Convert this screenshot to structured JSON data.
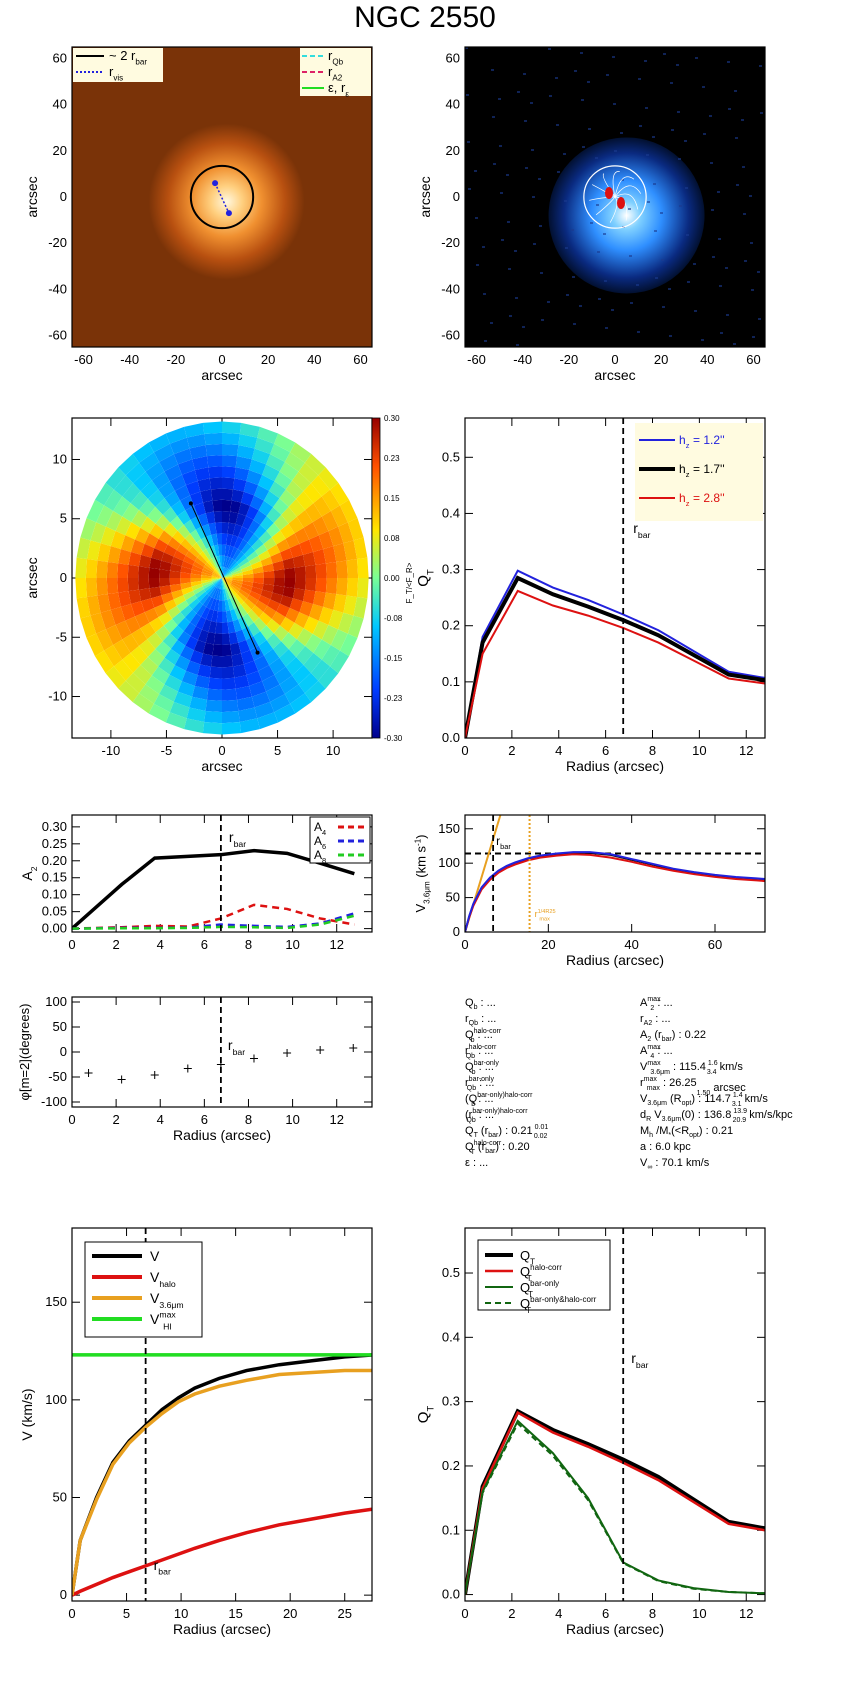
{
  "figure": {
    "title": "NGC 2550",
    "colors": {
      "black": "#000000",
      "blue": "#2222dd",
      "red": "#dd1111",
      "orange": "#e8a020",
      "green": "#22dd22",
      "darkgreen": "#116611",
      "cyan": "#33dddd",
      "magenta": "#dd2266",
      "dashed": "#000000"
    }
  },
  "chart_data": [
    {
      "id": "p1",
      "type": "image",
      "xlabel": "arcsec",
      "ylabel": "arcsec",
      "xlim": [
        -65,
        65
      ],
      "ylim": [
        -65,
        65
      ],
      "xticks": [
        -60,
        -40,
        -20,
        0,
        20,
        40,
        60
      ],
      "yticks": [
        -60,
        -40,
        -20,
        0,
        20,
        40,
        60
      ],
      "colormap": "orange",
      "circle_radius": 13.5,
      "bar_line": [
        [
          -3,
          6
        ],
        [
          3,
          -7
        ]
      ],
      "legend_left": [
        {
          "label": "~ 2 r",
          "sub": "bar",
          "style": "solid",
          "color": "#000000"
        },
        {
          "label": "r",
          "sub": "vis",
          "style": "dotted",
          "color": "#2222dd"
        }
      ],
      "legend_right": [
        {
          "label": "r",
          "sub": "Qb",
          "style": "dashed",
          "color": "#33dddd"
        },
        {
          "label": "r",
          "sub": "A2",
          "style": "dashed",
          "color": "#dd2266"
        },
        {
          "label": "ε, r",
          "sub": "ε",
          "style": "solid",
          "color": "#22dd22"
        }
      ]
    },
    {
      "id": "p2",
      "type": "image",
      "xlabel": "arcsec",
      "ylabel": "arcsec",
      "xlim": [
        -65,
        65
      ],
      "ylim": [
        -65,
        65
      ],
      "xticks": [
        -60,
        -40,
        -20,
        0,
        20,
        40,
        60
      ],
      "yticks": [
        -60,
        -40,
        -20,
        0,
        20,
        40,
        60
      ],
      "colormap": "blue",
      "circle_radius": 13.5
    },
    {
      "id": "p3",
      "type": "heatmap",
      "xlabel": "arcsec",
      "ylabel": "arcsec",
      "xlim": [
        -13.5,
        13.5
      ],
      "ylim": [
        -13.5,
        13.5
      ],
      "xticks": [
        -10,
        -5,
        0,
        5,
        10
      ],
      "yticks": [
        -10,
        -5,
        0,
        5,
        10
      ],
      "disk_radius": 13.2,
      "bar_line": [
        [
          -2.8,
          6.3
        ],
        [
          3.2,
          -6.3
        ]
      ],
      "colorbar": {
        "ticks": [
          "0.30",
          "0.23",
          "0.15",
          "0.08",
          "0.00",
          "-0.08",
          "-0.15",
          "-0.23",
          "-0.30"
        ],
        "label": "F_T/<F_R>"
      }
    },
    {
      "id": "p4",
      "type": "line",
      "xlabel": "Radius (arcsec)",
      "ylabel": "Q",
      "ylabel_sub": "T",
      "xlim": [
        0,
        12.8
      ],
      "ylim": [
        0,
        0.57
      ],
      "xticks": [
        0,
        2,
        4,
        6,
        8,
        10,
        12
      ],
      "yticks": [
        0.0,
        0.1,
        0.2,
        0.3,
        0.4,
        0.5
      ],
      "vline": 6.75,
      "vline_label": "r",
      "vline_label_sub": "bar",
      "x": [
        0,
        0.75,
        2.25,
        3.75,
        5.25,
        6.75,
        8.25,
        9.75,
        11.25,
        12.8
      ],
      "series": [
        {
          "name": "h",
          "name_sub": "z",
          "value": "=  1.2''",
          "color": "#2222dd",
          "width": 2,
          "values": [
            0,
            0.18,
            0.298,
            0.268,
            0.246,
            0.22,
            0.192,
            0.155,
            0.118,
            0.107
          ]
        },
        {
          "name": "h",
          "name_sub": "z",
          "value": "=  1.7''",
          "color": "#000000",
          "width": 4,
          "values": [
            0,
            0.17,
            0.285,
            0.256,
            0.234,
            0.21,
            0.183,
            0.148,
            0.113,
            0.103
          ]
        },
        {
          "name": "h",
          "name_sub": "z",
          "value": "=  2.8''",
          "color": "#dd1111",
          "width": 2,
          "values": [
            0,
            0.15,
            0.262,
            0.236,
            0.218,
            0.196,
            0.17,
            0.138,
            0.106,
            0.097
          ]
        }
      ]
    },
    {
      "id": "p5",
      "type": "line",
      "xlabel": "",
      "ylabel": "A",
      "ylabel_sub": "2",
      "xlim": [
        0,
        13.6
      ],
      "ylim": [
        -0.01,
        0.335
      ],
      "xticks": [
        0,
        2,
        4,
        6,
        8,
        10,
        12
      ],
      "yticks": [
        "0.00",
        "0.05",
        "0.10",
        "0.15",
        "0.20",
        "0.25",
        "0.30"
      ],
      "vline": 6.75,
      "vline_label": "r",
      "vline_label_sub": "bar",
      "x": [
        0,
        2.25,
        3.75,
        5.25,
        6.75,
        8.25,
        9.75,
        11.25,
        12.8
      ],
      "series": [
        {
          "name": "A2",
          "color": "#000000",
          "width": 3.5,
          "dash": "",
          "values": [
            0,
            0.13,
            0.208,
            0.213,
            0.218,
            0.23,
            0.222,
            0.193,
            0.162
          ]
        },
        {
          "name": "A",
          "name_sub": "4",
          "color": "#dd1111",
          "width": 2.5,
          "dash": "7,5",
          "values": [
            0,
            0.004,
            0.008,
            0.006,
            0.03,
            0.07,
            0.058,
            0.03,
            0.012
          ]
        },
        {
          "name": "A",
          "name_sub": "6",
          "color": "#2222dd",
          "width": 2.5,
          "dash": "7,5",
          "values": [
            0,
            0.002,
            0.002,
            0.003,
            0.012,
            0.008,
            0.005,
            0.015,
            0.045
          ]
        },
        {
          "name": "A",
          "name_sub": "8",
          "color": "#22cc22",
          "width": 2.5,
          "dash": "7,5",
          "values": [
            0,
            0.001,
            0.001,
            0.002,
            0.005,
            0.004,
            0.002,
            0.012,
            0.038
          ]
        }
      ]
    },
    {
      "id": "p6",
      "type": "line",
      "xlabel": "Radius (arcsec)",
      "ylabel": "V",
      "ylabel_sub": "3.6μm",
      "ylabel_suffix": " (km s",
      "ylabel_sup": "-1",
      "ylabel_end": ")",
      "xlim": [
        0,
        72
      ],
      "ylim": [
        0,
        170
      ],
      "xticks": [
        0,
        20,
        40,
        60
      ],
      "yticks": [
        0,
        50,
        100,
        150
      ],
      "vline": 6.75,
      "vline_label": "r",
      "vline_label_sub": "bar",
      "vline2": 15.5,
      "vline2_label": "r",
      "vline2_label_sub": "max",
      "vline2_label_sup": "1/4R25",
      "hline": 114,
      "x": [
        0,
        1,
        2,
        4,
        6,
        8,
        10,
        12,
        15,
        18,
        22,
        26,
        30,
        35,
        40,
        45,
        50,
        55,
        60,
        65,
        70,
        72
      ],
      "series": [
        {
          "name": "rise",
          "color": "#e8a020",
          "width": 2,
          "x2": [
            0,
            8.5
          ],
          "y2": [
            0,
            170
          ]
        },
        {
          "name": "black",
          "color": "#000000",
          "width": 2,
          "values": [
            0,
            22,
            40,
            64,
            78,
            88,
            95,
            100,
            106,
            110,
            113,
            115,
            115,
            112,
            105,
            98,
            91,
            86,
            82,
            79,
            77,
            76
          ]
        },
        {
          "name": "red",
          "color": "#dd1111",
          "width": 2,
          "values": [
            0,
            21,
            38,
            62,
            76,
            86,
            93,
            98,
            104,
            108,
            111,
            113,
            112,
            108,
            102,
            95,
            89,
            84,
            80,
            77,
            75,
            74
          ]
        },
        {
          "name": "blue",
          "color": "#2222dd",
          "width": 2,
          "values": [
            0,
            23,
            41,
            65,
            79,
            89,
            96,
            101,
            107,
            111,
            114,
            116,
            116,
            113,
            106,
            99,
            92,
            87,
            83,
            80,
            78,
            77
          ]
        }
      ]
    },
    {
      "id": "p7",
      "type": "scatter",
      "xlabel": "Radius (arcsec)",
      "ylabel": "φ[m=2](degrees)",
      "xlim": [
        0,
        13.6
      ],
      "ylim": [
        -110,
        110
      ],
      "xticks": [
        0,
        2,
        4,
        6,
        8,
        10,
        12
      ],
      "yticks": [
        -100,
        -50,
        0,
        50,
        100
      ],
      "vline": 6.75,
      "vline_label": "r",
      "vline_label_sub": "bar",
      "x": [
        0.75,
        2.25,
        3.75,
        5.25,
        6.75,
        8.25,
        9.75,
        11.25,
        12.75
      ],
      "values": [
        -42,
        -55,
        -46,
        -33,
        -25,
        -13,
        -2,
        4,
        8
      ]
    },
    {
      "id": "p9",
      "type": "line",
      "xlabel": "Radius (arcsec)",
      "ylabel": "V (km/s)",
      "xlim": [
        0,
        27.5
      ],
      "ylim": [
        -3,
        188
      ],
      "xticks": [
        0,
        5,
        10,
        15,
        20,
        25
      ],
      "yticks": [
        0,
        50,
        100,
        150
      ],
      "vline": 6.75,
      "vline_label": "r",
      "vline_label_sub": "bar",
      "hline": 123,
      "x": [
        0,
        0.75,
        2.25,
        3.75,
        5.25,
        6.75,
        8.25,
        9.75,
        11.25,
        13.5,
        16,
        19,
        22,
        25,
        27.5
      ],
      "series": [
        {
          "name": "V",
          "color": "#000000",
          "width": 3.5,
          "values": [
            0,
            28,
            50,
            68,
            79,
            87,
            95,
            101,
            106,
            111,
            115,
            118,
            120,
            122,
            123
          ]
        },
        {
          "name": "V",
          "name_sub": "halo",
          "color": "#dd1111",
          "width": 3.5,
          "values": [
            0,
            2,
            5.5,
            9,
            12,
            15,
            18,
            21,
            24,
            28,
            32,
            36,
            39,
            42,
            44
          ]
        },
        {
          "name": "V",
          "name_sub": "3.6μm",
          "color": "#e8a020",
          "width": 3.5,
          "values": [
            0,
            28,
            49,
            67,
            78,
            86,
            93,
            99,
            103,
            107,
            110,
            113,
            114,
            115,
            115
          ]
        },
        {
          "name": "V",
          "name_sub": "HI",
          "name_sup": "max",
          "color": "#22dd22",
          "width": 3.5,
          "values": [
            123,
            123,
            123,
            123,
            123,
            123,
            123,
            123,
            123,
            123,
            123,
            123,
            123,
            123,
            123
          ]
        }
      ]
    },
    {
      "id": "p10",
      "type": "line",
      "xlabel": "Radius (arcsec)",
      "ylabel": "Q",
      "ylabel_sub": "T",
      "xlim": [
        0,
        12.8
      ],
      "ylim": [
        -0.01,
        0.57
      ],
      "xticks": [
        0,
        2,
        4,
        6,
        8,
        10,
        12
      ],
      "yticks": [
        0.0,
        0.1,
        0.2,
        0.3,
        0.4,
        0.5
      ],
      "vline": 6.75,
      "vline_label": "r",
      "vline_label_sub": "bar",
      "x": [
        0,
        0.75,
        2.25,
        3.75,
        5.25,
        6.75,
        8.25,
        9.75,
        11.25,
        12.8
      ],
      "series": [
        {
          "name": "Q",
          "name_sub": "T",
          "color": "#000000",
          "width": 4,
          "dash": "",
          "values": [
            0,
            0.168,
            0.285,
            0.256,
            0.234,
            0.21,
            0.183,
            0.148,
            0.113,
            0.103
          ]
        },
        {
          "name": "Q",
          "name_sub": "T",
          "name_sup": "halo-corr",
          "color": "#dd1111",
          "width": 2.5,
          "dash": "",
          "values": [
            0,
            0.165,
            0.283,
            0.252,
            0.23,
            0.205,
            0.178,
            0.144,
            0.11,
            0.1
          ]
        },
        {
          "name": "Q",
          "name_sub": "T",
          "name_sup": "bar-only",
          "color": "#116611",
          "width": 2,
          "dash": "",
          "values": [
            0,
            0.16,
            0.27,
            0.22,
            0.15,
            0.05,
            0.022,
            0.01,
            0.004,
            0.002
          ]
        },
        {
          "name": "Q",
          "name_sub": "T",
          "name_sup": "bar-only&halo-corr",
          "color": "#116611",
          "width": 2,
          "dash": "6,4",
          "values": [
            0,
            0.158,
            0.266,
            0.216,
            0.147,
            0.049,
            0.021,
            0.009,
            0.004,
            0.002
          ]
        }
      ]
    }
  ],
  "table_left": [
    {
      "k": "Q",
      "sub": "b",
      "sup": "",
      "v": " : ..."
    },
    {
      "k": "r",
      "sub": "Qb",
      "sup": "",
      "v": " : ..."
    },
    {
      "k": "Q",
      "sub": "b",
      "sup": "halo-corr",
      "v": " : ..."
    },
    {
      "k": "r",
      "sub": "Qb",
      "sup": "halo-corr",
      "v": " : ..."
    },
    {
      "k": "Q",
      "sub": "b",
      "sup": "bar-only",
      "v": " : ..."
    },
    {
      "k": "r",
      "sub": "Qb",
      "sup": "bar-only",
      "v": " : ..."
    },
    {
      "k": "(Q",
      "sub": "b",
      "sup": "bar-only)halo-corr",
      "v": " : ..."
    },
    {
      "k": "(r",
      "sub": "Qb",
      "sup": "bar-only)halo-corr",
      "v": " : ..."
    },
    {
      "k": "Q",
      "sub": "T",
      "sup": "",
      "v": "(r",
      "v_sub": "bar",
      "v2": ")  :  0.21",
      "pm_up": "0.01",
      "pm_dn": "0.02"
    },
    {
      "k": "Q",
      "sub": "T",
      "sup": "halo-corr",
      "v": "(r",
      "v_sub": "bar",
      "v2": ") :  0.20"
    },
    {
      "k": "ε",
      "sub": "",
      "sup": "",
      "v": " : ..."
    }
  ],
  "table_right": [
    {
      "k": "A",
      "sub": "2",
      "sup": "max",
      "v": " : ..."
    },
    {
      "k": "r",
      "sub": "A2",
      "sup": "",
      "v": " : ..."
    },
    {
      "k": "A",
      "sub": "2",
      "sup": "",
      "v": "(r",
      "v_sub": "bar",
      "v2": ") :  0.22"
    },
    {
      "k": "A",
      "sub": "4",
      "sup": "max",
      "v": " : ..."
    },
    {
      "k": "V",
      "sub": "3.6μm",
      "sup": "max",
      "v": " :  115.4",
      "pm_up": "1.6",
      "pm_dn": "3.4",
      "v3": " km/s"
    },
    {
      "k": "r",
      "sub": "max",
      "sup": "max",
      "v": " :  26.25",
      "pm_up": "",
      "pm_dn": "1.50",
      "v3": " arcsec"
    },
    {
      "k": "V",
      "sub": "3.6μm",
      "sup": "",
      "v": "(R",
      "v_sub": "opt",
      "v2": ") :  114.7",
      "pm_up": "1.4",
      "pm_dn": "3.1",
      "v3": " km/s"
    },
    {
      "k": "d",
      "sub": "R",
      "sup": "",
      "v": "V",
      "v_sub": "3.6μm",
      "v2": "(0) :  136.8",
      "pm_up": "13.9",
      "pm_dn": "20.9",
      "v3": " km/s/kpc"
    },
    {
      "k": "M",
      "sub": "h",
      "sup": "",
      "v": "/M",
      "v_sub": "*",
      "v2": "(<R",
      "v_sub2": "opt",
      "v4": ") :  0.21"
    },
    {
      "k": "a",
      "sub": "",
      "sup": "",
      "v": " :  6.0 kpc"
    },
    {
      "k": "V",
      "sub": "∞",
      "sup": "",
      "v": " :  70.1 km/s"
    }
  ]
}
